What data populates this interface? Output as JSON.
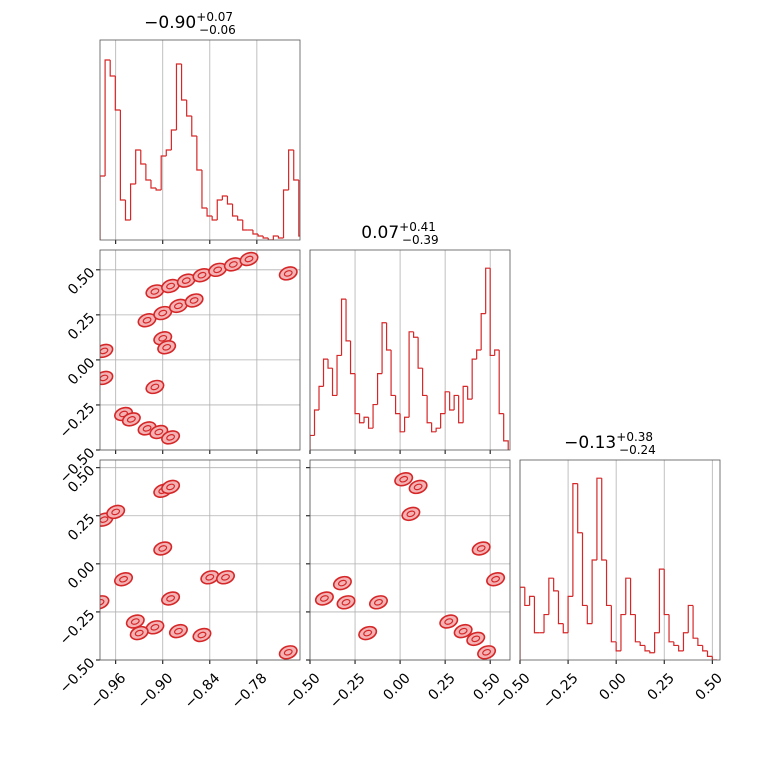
{
  "chart_data": [
    {
      "type": "histogram",
      "title": "−0.90",
      "title_upper": "+0.07",
      "title_lower": "−0.06",
      "color": "#d62728",
      "bins": [
        -0.98,
        -0.9735,
        -0.967,
        -0.9605,
        -0.954,
        -0.9475,
        -0.941,
        -0.9345,
        -0.928,
        -0.9215,
        -0.915,
        -0.9085,
        -0.902,
        -0.8955,
        -0.889,
        -0.8825,
        -0.876,
        -0.8695,
        -0.863,
        -0.8565,
        -0.85,
        -0.8435,
        -0.837,
        -0.8305,
        -0.824,
        -0.8175,
        -0.811,
        -0.8045,
        -0.798,
        -0.7915,
        -0.785,
        -0.7785,
        -0.772,
        -0.7655,
        -0.759,
        -0.7525,
        -0.746,
        -0.7395,
        -0.733,
        -0.7265,
        -0.72
      ],
      "values": [
        32,
        90,
        82,
        65,
        20,
        10,
        28,
        45,
        38,
        30,
        26,
        25,
        42,
        45,
        55,
        88,
        70,
        62,
        52,
        35,
        16,
        12,
        10,
        20,
        22,
        18,
        12,
        10,
        5,
        5,
        3,
        2,
        1,
        0,
        2,
        1,
        25,
        45,
        30,
        2
      ],
      "xlim": [
        -0.98,
        -0.725
      ],
      "ylim": [
        0,
        100
      ],
      "xticks": [
        -0.96,
        -0.9,
        -0.84,
        -0.78
      ],
      "grid": true
    },
    {
      "type": "contour",
      "color": "#d62728",
      "fill": "#f3b3b5",
      "x": [
        -0.975,
        -0.975,
        -0.95,
        -0.94,
        -0.92,
        -0.905,
        -0.89,
        -0.91,
        -0.89,
        -0.87,
        -0.85,
        -0.83,
        -0.81,
        -0.79,
        -0.92,
        -0.9,
        -0.88,
        -0.86,
        -0.9,
        -0.895,
        -0.91,
        -0.74
      ],
      "y": [
        0.05,
        -0.1,
        -0.3,
        -0.33,
        -0.38,
        -0.4,
        -0.43,
        0.38,
        0.41,
        0.44,
        0.47,
        0.5,
        0.53,
        0.56,
        0.22,
        0.26,
        0.3,
        0.33,
        0.12,
        0.07,
        -0.15,
        0.48
      ],
      "xlim": [
        -0.98,
        -0.725
      ],
      "ylim": [
        -0.5,
        0.61
      ],
      "xticks": [
        -0.96,
        -0.9,
        -0.84,
        -0.78
      ],
      "yticks": [
        {
          "value": -0.5,
          "label": "−0.50"
        },
        {
          "value": -0.25,
          "label": "−0.25"
        },
        {
          "value": 0,
          "label": "0.00"
        },
        {
          "value": 0.25,
          "label": "0.25"
        },
        {
          "value": 0.5,
          "label": "0.50"
        }
      ],
      "grid": true
    },
    {
      "type": "histogram",
      "title": "0.07",
      "title_upper": "+0.41",
      "title_lower": "−0.39",
      "color": "#d62728",
      "bins": [
        -0.5,
        -0.475,
        -0.45,
        -0.425,
        -0.4,
        -0.375,
        -0.35,
        -0.325,
        -0.3,
        -0.275,
        -0.25,
        -0.225,
        -0.2,
        -0.175,
        -0.15,
        -0.125,
        -0.1,
        -0.075,
        -0.05,
        -0.025,
        0,
        0.025,
        0.05,
        0.075,
        0.1,
        0.125,
        0.15,
        0.175,
        0.2,
        0.225,
        0.25,
        0.275,
        0.3,
        0.325,
        0.35,
        0.375,
        0.4,
        0.425,
        0.45,
        0.475,
        0.5,
        0.525,
        0.55,
        0.575,
        0.6
      ],
      "values": [
        8,
        22,
        35,
        50,
        45,
        30,
        52,
        83,
        60,
        42,
        20,
        15,
        18,
        12,
        25,
        42,
        70,
        55,
        30,
        20,
        10,
        18,
        65,
        62,
        45,
        30,
        15,
        10,
        12,
        20,
        32,
        22,
        30,
        15,
        35,
        28,
        50,
        55,
        75,
        100,
        52,
        55,
        20,
        5
      ],
      "xlim": [
        -0.5,
        0.61
      ],
      "ylim": [
        0,
        110
      ],
      "xticks": [
        -0.5,
        -0.25,
        0,
        0.25,
        0.5
      ],
      "grid": true
    },
    {
      "type": "contour",
      "color": "#d62728",
      "fill": "#f3b3b5",
      "x": [
        -0.975,
        -0.96,
        -0.9,
        -0.89,
        -0.9,
        -0.95,
        -0.98,
        -0.89,
        -0.84,
        -0.82,
        -0.935,
        -0.91,
        -0.88,
        -0.85,
        -0.93,
        -0.74
      ],
      "y": [
        0.23,
        0.27,
        0.38,
        0.4,
        0.08,
        -0.08,
        -0.2,
        -0.18,
        -0.07,
        -0.07,
        -0.3,
        -0.33,
        -0.35,
        -0.37,
        -0.36,
        -0.46
      ],
      "xlim": [
        -0.98,
        -0.725
      ],
      "ylim": [
        -0.5,
        0.54
      ],
      "xticks": [
        {
          "value": -0.96,
          "label": "−0.96"
        },
        {
          "value": -0.9,
          "label": "−0.90"
        },
        {
          "value": -0.84,
          "label": "−0.84"
        },
        {
          "value": -0.78,
          "label": "−0.78"
        }
      ],
      "yticks": [
        {
          "value": -0.5,
          "label": "−0.50"
        },
        {
          "value": -0.25,
          "label": "−0.25"
        },
        {
          "value": 0,
          "label": "0.00"
        },
        {
          "value": 0.25,
          "label": "0.25"
        },
        {
          "value": 0.5,
          "label": "0.50"
        }
      ],
      "grid": true
    },
    {
      "type": "contour",
      "color": "#d62728",
      "fill": "#f3b3b5",
      "x": [
        0.02,
        0.1,
        0.06,
        0.45,
        0.53,
        -0.32,
        -0.42,
        -0.12,
        -0.3,
        0.27,
        0.35,
        0.42,
        0.48,
        -0.18
      ],
      "y": [
        0.44,
        0.4,
        0.26,
        0.08,
        -0.08,
        -0.1,
        -0.18,
        -0.2,
        -0.2,
        -0.3,
        -0.35,
        -0.39,
        -0.46,
        -0.36
      ],
      "xlim": [
        -0.5,
        0.61
      ],
      "ylim": [
        -0.5,
        0.54
      ],
      "xticks": [
        {
          "value": -0.5,
          "label": "−0.50"
        },
        {
          "value": -0.25,
          "label": "−0.25"
        },
        {
          "value": 0,
          "label": "0.00"
        },
        {
          "value": 0.25,
          "label": "0.25"
        },
        {
          "value": 0.5,
          "label": "0.50"
        }
      ],
      "yticks": [
        -0.5,
        -0.25,
        0,
        0.25,
        0.5
      ],
      "grid": true
    },
    {
      "type": "histogram",
      "title": "−0.13",
      "title_upper": "+0.38",
      "title_lower": "−0.24",
      "color": "#d62728",
      "bins": [
        -0.5,
        -0.475,
        -0.45,
        -0.425,
        -0.4,
        -0.375,
        -0.35,
        -0.325,
        -0.3,
        -0.275,
        -0.25,
        -0.225,
        -0.2,
        -0.175,
        -0.15,
        -0.125,
        -0.1,
        -0.075,
        -0.05,
        -0.025,
        0,
        0.025,
        0.05,
        0.075,
        0.1,
        0.125,
        0.15,
        0.175,
        0.2,
        0.225,
        0.25,
        0.275,
        0.3,
        0.325,
        0.35,
        0.375,
        0.4,
        0.425,
        0.45,
        0.475,
        0.5,
        0.525
      ],
      "values": [
        40,
        30,
        35,
        15,
        15,
        25,
        45,
        38,
        20,
        15,
        35,
        97,
        70,
        30,
        20,
        55,
        100,
        55,
        30,
        10,
        5,
        25,
        45,
        25,
        10,
        8,
        5,
        4,
        15,
        50,
        25,
        10,
        8,
        5,
        15,
        30,
        12,
        8,
        5,
        2,
        0
      ],
      "xlim": [
        -0.5,
        0.54
      ],
      "ylim": [
        0,
        110
      ],
      "xticks": [
        {
          "value": -0.5,
          "label": "−0.50"
        },
        {
          "value": -0.25,
          "label": "−0.25"
        },
        {
          "value": 0,
          "label": "0.00"
        },
        {
          "value": 0.25,
          "label": "0.25"
        },
        {
          "value": 0.5,
          "label": "0.50"
        }
      ],
      "grid": true
    }
  ]
}
